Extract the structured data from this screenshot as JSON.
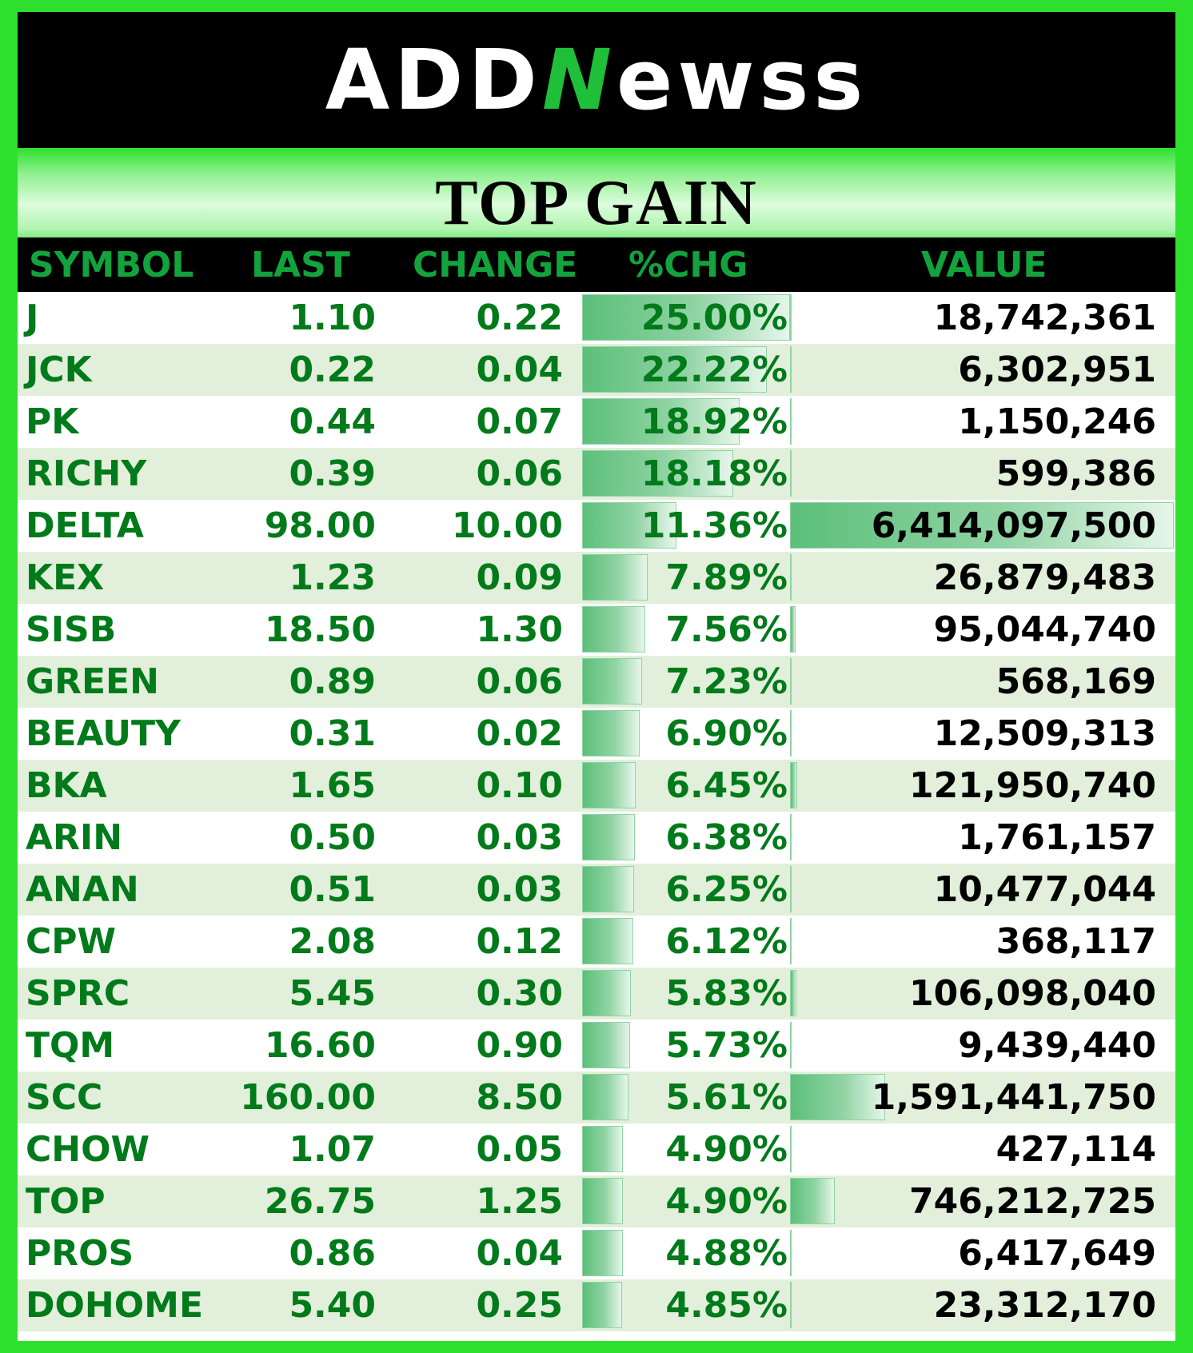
{
  "brand": {
    "logo_left": "ADD",
    "logo_accent": "N",
    "logo_right": "ewss"
  },
  "title": "TOP GAIN",
  "columns": {
    "symbol": "SYMBOL",
    "last": "LAST",
    "change": "CHANGE",
    "pct": "%CHG",
    "value": "VALUE"
  },
  "rows": [
    {
      "symbol": "J",
      "last": "1.10",
      "change": "0.22",
      "pct": "25.00%",
      "value": "18,742,361",
      "pct_num": 25.0,
      "value_num": 18742361
    },
    {
      "symbol": "JCK",
      "last": "0.22",
      "change": "0.04",
      "pct": "22.22%",
      "value": "6,302,951",
      "pct_num": 22.22,
      "value_num": 6302951
    },
    {
      "symbol": "PK",
      "last": "0.44",
      "change": "0.07",
      "pct": "18.92%",
      "value": "1,150,246",
      "pct_num": 18.92,
      "value_num": 1150246
    },
    {
      "symbol": "RICHY",
      "last": "0.39",
      "change": "0.06",
      "pct": "18.18%",
      "value": "599,386",
      "pct_num": 18.18,
      "value_num": 599386
    },
    {
      "symbol": "DELTA",
      "last": "98.00",
      "change": "10.00",
      "pct": "11.36%",
      "value": "6,414,097,500",
      "pct_num": 11.36,
      "value_num": 6414097500
    },
    {
      "symbol": "KEX",
      "last": "1.23",
      "change": "0.09",
      "pct": "7.89%",
      "value": "26,879,483",
      "pct_num": 7.89,
      "value_num": 26879483
    },
    {
      "symbol": "SISB",
      "last": "18.50",
      "change": "1.30",
      "pct": "7.56%",
      "value": "95,044,740",
      "pct_num": 7.56,
      "value_num": 95044740
    },
    {
      "symbol": "GREEN",
      "last": "0.89",
      "change": "0.06",
      "pct": "7.23%",
      "value": "568,169",
      "pct_num": 7.23,
      "value_num": 568169
    },
    {
      "symbol": "BEAUTY",
      "last": "0.31",
      "change": "0.02",
      "pct": "6.90%",
      "value": "12,509,313",
      "pct_num": 6.9,
      "value_num": 12509313
    },
    {
      "symbol": "BKA",
      "last": "1.65",
      "change": "0.10",
      "pct": "6.45%",
      "value": "121,950,740",
      "pct_num": 6.45,
      "value_num": 121950740
    },
    {
      "symbol": "ARIN",
      "last": "0.50",
      "change": "0.03",
      "pct": "6.38%",
      "value": "1,761,157",
      "pct_num": 6.38,
      "value_num": 1761157
    },
    {
      "symbol": "ANAN",
      "last": "0.51",
      "change": "0.03",
      "pct": "6.25%",
      "value": "10,477,044",
      "pct_num": 6.25,
      "value_num": 10477044
    },
    {
      "symbol": "CPW",
      "last": "2.08",
      "change": "0.12",
      "pct": "6.12%",
      "value": "368,117",
      "pct_num": 6.12,
      "value_num": 368117
    },
    {
      "symbol": "SPRC",
      "last": "5.45",
      "change": "0.30",
      "pct": "5.83%",
      "value": "106,098,040",
      "pct_num": 5.83,
      "value_num": 106098040
    },
    {
      "symbol": "TQM",
      "last": "16.60",
      "change": "0.90",
      "pct": "5.73%",
      "value": "9,439,440",
      "pct_num": 5.73,
      "value_num": 9439440
    },
    {
      "symbol": "SCC",
      "last": "160.00",
      "change": "8.50",
      "pct": "5.61%",
      "value": "1,591,441,750",
      "pct_num": 5.61,
      "value_num": 1591441750
    },
    {
      "symbol": "CHOW",
      "last": "1.07",
      "change": "0.05",
      "pct": "4.90%",
      "value": "427,114",
      "pct_num": 4.9,
      "value_num": 427114
    },
    {
      "symbol": "TOP",
      "last": "26.75",
      "change": "1.25",
      "pct": "4.90%",
      "value": "746,212,725",
      "pct_num": 4.9,
      "value_num": 746212725
    },
    {
      "symbol": "PROS",
      "last": "0.86",
      "change": "0.04",
      "pct": "4.88%",
      "value": "6,417,649",
      "pct_num": 4.88,
      "value_num": 6417649
    },
    {
      "symbol": "DOHOME",
      "last": "5.40",
      "change": "0.25",
      "pct": "4.85%",
      "value": "23,312,170",
      "pct_num": 4.85,
      "value_num": 23312170
    }
  ]
}
